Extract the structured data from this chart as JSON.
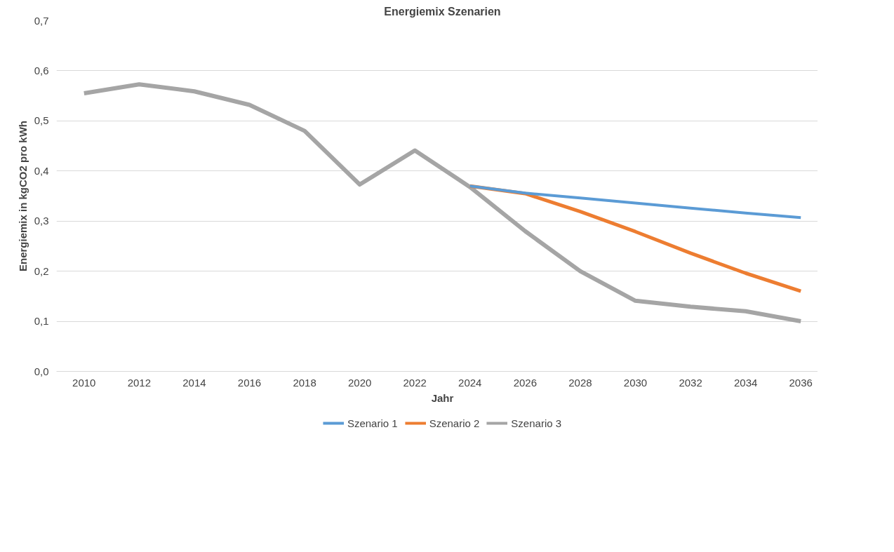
{
  "chart_data": {
    "type": "line",
    "title": "Energiemix Szenarien",
    "xlabel": "Jahr",
    "ylabel": "Energiemix in kgCO2 pro kWh",
    "categories": [
      "2010",
      "2012",
      "2014",
      "2016",
      "2018",
      "2020",
      "2022",
      "2024",
      "2026",
      "2028",
      "2030",
      "2032",
      "2034",
      "2036"
    ],
    "series": [
      {
        "name": "Szenario 1",
        "color": "#5b9bd5",
        "values": [
          null,
          null,
          null,
          null,
          null,
          null,
          null,
          0.37,
          0.356,
          0.346,
          0.336,
          0.326,
          0.316,
          0.307
        ]
      },
      {
        "name": "Szenario 2",
        "color": "#ed7d31",
        "values": [
          null,
          null,
          null,
          null,
          null,
          null,
          null,
          0.37,
          0.355,
          0.319,
          0.279,
          0.236,
          0.196,
          0.16
        ]
      },
      {
        "name": "Szenario 3",
        "color": "#a5a5a5",
        "values": [
          0.555,
          0.573,
          0.559,
          0.532,
          0.48,
          0.373,
          0.441,
          0.368,
          0.28,
          0.2,
          0.141,
          0.129,
          0.12,
          0.1
        ]
      }
    ],
    "ylim": [
      0,
      0.7
    ],
    "yticks": [
      {
        "value": 0,
        "label": "0,0"
      },
      {
        "value": 0.1,
        "label": "0,1"
      },
      {
        "value": 0.2,
        "label": "0,2"
      },
      {
        "value": 0.3,
        "label": "0,3"
      },
      {
        "value": 0.4,
        "label": "0,4"
      },
      {
        "value": 0.5,
        "label": "0,5"
      },
      {
        "value": 0.6,
        "label": "0,6"
      },
      {
        "value": 0.7,
        "label": "0,7"
      }
    ],
    "grid": "y",
    "legend": "bottom",
    "marker": "none",
    "line_style": "solid"
  }
}
